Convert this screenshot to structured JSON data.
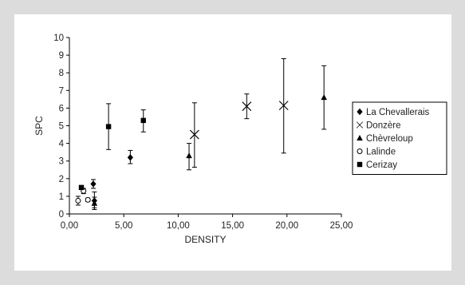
{
  "chart_data": {
    "type": "scatter",
    "title": "",
    "xlabel": "DENSITY",
    "ylabel": "SPC",
    "xlim": [
      0,
      25
    ],
    "ylim": [
      0,
      10
    ],
    "x_ticks": [
      "0,00",
      "5,00",
      "10,00",
      "15,00",
      "20,00",
      "25,00"
    ],
    "y_ticks": [
      "0",
      "1",
      "2",
      "3",
      "4",
      "5",
      "6",
      "7",
      "8",
      "9",
      "10"
    ],
    "grid": false,
    "legend_position": "right",
    "series": [
      {
        "name": "La Chevallerais",
        "marker": "diamond",
        "points": [
          {
            "x": 2.2,
            "y": 1.7,
            "err_low": 1.45,
            "err_high": 1.95
          },
          {
            "x": 2.3,
            "y": 0.75,
            "err_low": 0.35,
            "err_high": 1.25
          },
          {
            "x": 5.6,
            "y": 3.2,
            "err_low": 2.85,
            "err_high": 3.6
          }
        ]
      },
      {
        "name": "Donzère",
        "marker": "x",
        "points": [
          {
            "x": 11.5,
            "y": 4.5,
            "err_low": 2.65,
            "err_high": 6.3
          },
          {
            "x": 16.3,
            "y": 6.1,
            "err_low": 5.4,
            "err_high": 6.8
          },
          {
            "x": 19.7,
            "y": 6.15,
            "err_low": 3.45,
            "err_high": 8.8
          }
        ]
      },
      {
        "name": "Chèvreloup",
        "marker": "triangle",
        "points": [
          {
            "x": 2.3,
            "y": 0.6,
            "err_low": 0.25,
            "err_high": 0.95
          },
          {
            "x": 11.0,
            "y": 3.3,
            "err_low": 2.5,
            "err_high": 4.0
          },
          {
            "x": 23.4,
            "y": 6.6,
            "err_low": 4.8,
            "err_high": 8.4
          }
        ]
      },
      {
        "name": "Lalinde",
        "marker": "circle",
        "points": [
          {
            "x": 0.8,
            "y": 0.75,
            "err_low": 0.5,
            "err_high": 1.0
          },
          {
            "x": 1.3,
            "y": 1.3,
            "err_low": 1.15,
            "err_high": 1.45
          },
          {
            "x": 1.7,
            "y": 0.8,
            "err_low": 0.7,
            "err_high": 0.9
          }
        ]
      },
      {
        "name": "Cerizay",
        "marker": "square",
        "points": [
          {
            "x": 1.1,
            "y": 1.5,
            "err_low": 1.45,
            "err_high": 1.55
          },
          {
            "x": 3.6,
            "y": 4.95,
            "err_low": 3.65,
            "err_high": 6.25
          },
          {
            "x": 6.8,
            "y": 5.3,
            "err_low": 4.65,
            "err_high": 5.9
          }
        ]
      }
    ]
  }
}
